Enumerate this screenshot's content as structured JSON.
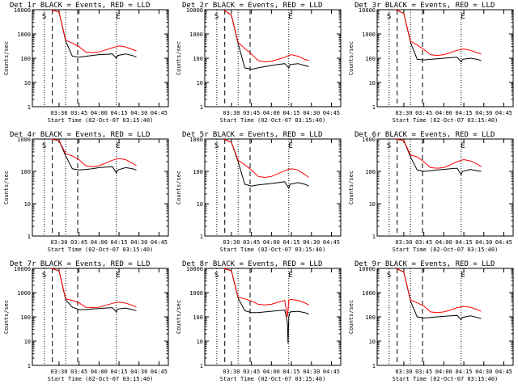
{
  "figure": {
    "xlabel": "Start Time (02-Oct-07 03:15:40)",
    "ylabel": "Counts/sec",
    "xticks": [
      "03:30",
      "03:45",
      "04:00",
      "04:15",
      "04:30",
      "04:45"
    ],
    "yticks": [
      "1",
      "10",
      "100",
      "1000",
      "10000"
    ],
    "colors": {
      "events": "#000000",
      "lld": "#ff0000"
    }
  },
  "chart_data": [
    {
      "type": "line",
      "title": "Det 1r BLACK = Events, RED = LLD",
      "xlabel": "Start Time (02-Oct-07 03:15:40)",
      "ylabel": "Counts/sec",
      "xlim_min": [
        15.67,
        90
      ],
      "ylim": [
        1,
        10000
      ],
      "yscale": "log",
      "markers": {
        "S": 19,
        "E": 74
      },
      "vlines_dotted": [
        19,
        35,
        73
      ],
      "vlines_dashed": [
        25,
        44
      ],
      "series": [
        {
          "name": "Events",
          "color": "#000000",
          "x": [
            24,
            30,
            35,
            40,
            45,
            50,
            55,
            60,
            65,
            70,
            73,
            74,
            80,
            85,
            88
          ],
          "y": [
            10000,
            8000,
            500,
            120,
            110,
            120,
            130,
            140,
            145,
            150,
            100,
            130,
            150,
            130,
            110
          ]
        },
        {
          "name": "LLD",
          "color": "#ff0000",
          "x": [
            24,
            30,
            35,
            40,
            45,
            50,
            55,
            60,
            65,
            70,
            73,
            75,
            80,
            85,
            88
          ],
          "y": [
            10000,
            8000,
            550,
            420,
            300,
            180,
            170,
            180,
            220,
            270,
            300,
            320,
            290,
            230,
            200
          ]
        }
      ]
    },
    {
      "type": "line",
      "title": "Det 2r BLACK = Events, RED = LLD",
      "xlabel": "Start Time (02-Oct-07 03:15:40)",
      "ylabel": "Counts/sec",
      "xlim_min": [
        15.67,
        90
      ],
      "ylim": [
        1,
        10000
      ],
      "yscale": "log",
      "markers": {
        "S": 19,
        "E": 74
      },
      "vlines_dotted": [
        19,
        35,
        73
      ],
      "vlines_dashed": [
        25,
        44
      ],
      "series": [
        {
          "name": "Events",
          "color": "#000000",
          "x": [
            24,
            30,
            35,
            40,
            45,
            50,
            55,
            60,
            65,
            70,
            73,
            74,
            80,
            85,
            88
          ],
          "y": [
            10000,
            6000,
            400,
            40,
            35,
            40,
            45,
            50,
            55,
            60,
            40,
            55,
            60,
            50,
            45
          ]
        },
        {
          "name": "LLD",
          "color": "#ff0000",
          "x": [
            24,
            30,
            35,
            40,
            45,
            50,
            55,
            60,
            65,
            70,
            73,
            75,
            80,
            85,
            88
          ],
          "y": [
            10000,
            6000,
            450,
            250,
            150,
            80,
            70,
            75,
            90,
            110,
            130,
            140,
            120,
            90,
            80
          ]
        }
      ]
    },
    {
      "type": "line",
      "title": "Det 3r BLACK = Events, RED = LLD",
      "xlabel": "Start Time (02-Oct-07 03:15:40)",
      "ylabel": "Counts/sec",
      "xlim_min": [
        15.67,
        90
      ],
      "ylim": [
        1,
        10000
      ],
      "yscale": "log",
      "markers": {
        "S": 19,
        "E": 74
      },
      "vlines_dotted": [
        19,
        35,
        73
      ],
      "vlines_dashed": [
        25,
        44
      ],
      "series": [
        {
          "name": "Events",
          "color": "#000000",
          "x": [
            24,
            30,
            35,
            40,
            45,
            50,
            55,
            60,
            65,
            70,
            73,
            74,
            80,
            85,
            88
          ],
          "y": [
            10000,
            7000,
            450,
            90,
            85,
            90,
            95,
            100,
            105,
            110,
            70,
            90,
            100,
            90,
            80
          ]
        },
        {
          "name": "LLD",
          "color": "#ff0000",
          "x": [
            24,
            30,
            35,
            40,
            45,
            50,
            55,
            60,
            65,
            70,
            73,
            75,
            80,
            85,
            88
          ],
          "y": [
            10000,
            7000,
            500,
            350,
            230,
            140,
            130,
            140,
            170,
            210,
            230,
            240,
            210,
            170,
            150
          ]
        }
      ]
    },
    {
      "type": "line",
      "title": "Det 4r BLACK = Events, RED = LLD",
      "xlabel": "Start Time (02-Oct-07 03:15:40)",
      "ylabel": "Counts/sec",
      "xlim_min": [
        15.67,
        90
      ],
      "ylim": [
        1,
        1000
      ],
      "yscale": "log",
      "markers": {
        "S": 19,
        "E": 74
      },
      "vlines_dotted": [
        19,
        35,
        73
      ],
      "vlines_dashed": [
        25,
        44
      ],
      "series": [
        {
          "name": "Events",
          "color": "#000000",
          "x": [
            24,
            30,
            35,
            40,
            45,
            50,
            55,
            60,
            65,
            70,
            73,
            74,
            80,
            85,
            88
          ],
          "y": [
            1000,
            900,
            300,
            120,
            110,
            115,
            120,
            130,
            135,
            140,
            90,
            110,
            130,
            120,
            110
          ]
        },
        {
          "name": "LLD",
          "color": "#ff0000",
          "x": [
            24,
            30,
            35,
            40,
            45,
            50,
            55,
            60,
            65,
            70,
            73,
            75,
            80,
            85,
            88
          ],
          "y": [
            1000,
            900,
            350,
            300,
            230,
            150,
            140,
            150,
            180,
            220,
            240,
            250,
            230,
            180,
            150
          ]
        }
      ]
    },
    {
      "type": "line",
      "title": "Det 5r BLACK = Events, RED = LLD",
      "xlabel": "Start Time (02-Oct-07 03:15:40)",
      "ylabel": "Counts/sec",
      "xlim_min": [
        15.67,
        90
      ],
      "ylim": [
        1,
        1000
      ],
      "yscale": "log",
      "markers": {
        "S": 19,
        "E": 74
      },
      "vlines_dotted": [
        19,
        35,
        73
      ],
      "vlines_dashed": [
        25,
        44
      ],
      "series": [
        {
          "name": "Events",
          "color": "#000000",
          "x": [
            24,
            30,
            35,
            40,
            45,
            50,
            55,
            60,
            65,
            70,
            73,
            74,
            80,
            85,
            88
          ],
          "y": [
            1000,
            800,
            200,
            40,
            35,
            38,
            40,
            42,
            45,
            48,
            30,
            40,
            45,
            40,
            35
          ]
        },
        {
          "name": "LLD",
          "color": "#ff0000",
          "x": [
            24,
            30,
            35,
            40,
            45,
            50,
            55,
            60,
            65,
            70,
            73,
            75,
            80,
            85,
            88
          ],
          "y": [
            1000,
            800,
            220,
            160,
            110,
            70,
            65,
            70,
            85,
            105,
            115,
            120,
            110,
            80,
            65
          ]
        }
      ]
    },
    {
      "type": "line",
      "title": "Det 6r BLACK = Events, RED = LLD",
      "xlabel": "Start Time (02-Oct-07 03:15:40)",
      "ylabel": "Counts/sec",
      "xlim_min": [
        15.67,
        90
      ],
      "ylim": [
        1,
        1000
      ],
      "yscale": "log",
      "markers": {
        "S": 19,
        "E": 74
      },
      "vlines_dotted": [
        19,
        35,
        73
      ],
      "vlines_dashed": [
        25,
        44
      ],
      "series": [
        {
          "name": "Events",
          "color": "#000000",
          "x": [
            24,
            30,
            35,
            40,
            45,
            50,
            55,
            60,
            65,
            70,
            73,
            74,
            80,
            85,
            88
          ],
          "y": [
            1000,
            900,
            280,
            110,
            100,
            105,
            110,
            115,
            120,
            125,
            80,
            100,
            115,
            105,
            100
          ]
        },
        {
          "name": "LLD",
          "color": "#ff0000",
          "x": [
            24,
            30,
            35,
            40,
            45,
            50,
            55,
            60,
            65,
            70,
            73,
            75,
            80,
            85,
            88
          ],
          "y": [
            1000,
            900,
            320,
            280,
            200,
            130,
            125,
            130,
            160,
            200,
            220,
            230,
            210,
            170,
            140
          ]
        }
      ]
    },
    {
      "type": "line",
      "title": "Det 7r BLACK = Events, RED = LLD",
      "xlabel": "Start Time (02-Oct-07 03:15:40)",
      "ylabel": "Counts/sec",
      "xlim_min": [
        15.67,
        90
      ],
      "ylim": [
        1,
        10000
      ],
      "yscale": "log",
      "markers": {
        "S": 19,
        "E": 74
      },
      "vlines_dotted": [
        19,
        35,
        73
      ],
      "vlines_dashed": [
        25,
        44
      ],
      "series": [
        {
          "name": "Events",
          "color": "#000000",
          "x": [
            24,
            30,
            35,
            40,
            45,
            50,
            55,
            60,
            65,
            70,
            73,
            74,
            80,
            85,
            88
          ],
          "y": [
            10000,
            8000,
            500,
            250,
            200,
            200,
            210,
            220,
            230,
            240,
            160,
            210,
            230,
            200,
            180
          ]
        },
        {
          "name": "LLD",
          "color": "#ff0000",
          "x": [
            24,
            30,
            35,
            40,
            45,
            50,
            55,
            60,
            65,
            70,
            73,
            75,
            80,
            85,
            88
          ],
          "y": [
            10000,
            8000,
            550,
            480,
            380,
            250,
            240,
            250,
            300,
            360,
            390,
            400,
            370,
            300,
            250
          ]
        }
      ]
    },
    {
      "type": "line",
      "title": "Det 8r BLACK = Events, RED = LLD",
      "xlabel": "Start Time (02-Oct-07 03:15:40)",
      "ylabel": "Counts/sec",
      "xlim_min": [
        15.67,
        90
      ],
      "ylim": [
        1,
        10000
      ],
      "yscale": "log",
      "markers": {
        "S": 19,
        "E": 74
      },
      "vlines_dotted": [
        19,
        35,
        73
      ],
      "vlines_dashed": [
        25,
        44
      ],
      "series": [
        {
          "name": "Events",
          "color": "#000000",
          "x": [
            24,
            30,
            35,
            40,
            45,
            50,
            55,
            60,
            65,
            70,
            72,
            72.5,
            73,
            74,
            80,
            85,
            88
          ],
          "y": [
            10000,
            8000,
            600,
            180,
            150,
            150,
            160,
            170,
            180,
            190,
            60,
            8,
            100,
            160,
            170,
            150,
            130
          ]
        },
        {
          "name": "LLD",
          "color": "#ff0000",
          "x": [
            24,
            30,
            35,
            40,
            45,
            50,
            55,
            60,
            65,
            70,
            72,
            73,
            75,
            80,
            85,
            88
          ],
          "y": [
            10000,
            8000,
            650,
            550,
            450,
            330,
            310,
            330,
            400,
            480,
            100,
            500,
            520,
            480,
            380,
            310
          ]
        }
      ]
    },
    {
      "type": "line",
      "title": "Det 9r BLACK = Events, RED = LLD",
      "xlabel": "Start Time (02-Oct-07 03:15:40)",
      "ylabel": "Counts/sec",
      "xlim_min": [
        15.67,
        90
      ],
      "ylim": [
        1,
        10000
      ],
      "yscale": "log",
      "markers": {
        "S": 19,
        "E": 74
      },
      "vlines_dotted": [
        19,
        35,
        73
      ],
      "vlines_dashed": [
        25,
        44
      ],
      "series": [
        {
          "name": "Events",
          "color": "#000000",
          "x": [
            24,
            30,
            35,
            40,
            45,
            50,
            55,
            60,
            65,
            70,
            73,
            74,
            80,
            85,
            88
          ],
          "y": [
            10000,
            7000,
            450,
            100,
            90,
            95,
            100,
            105,
            110,
            115,
            75,
            95,
            110,
            95,
            85
          ]
        },
        {
          "name": "LLD",
          "color": "#ff0000",
          "x": [
            24,
            30,
            35,
            40,
            45,
            50,
            55,
            60,
            65,
            70,
            73,
            75,
            80,
            85,
            88
          ],
          "y": [
            10000,
            7000,
            500,
            380,
            280,
            160,
            150,
            160,
            190,
            240,
            260,
            270,
            250,
            200,
            170
          ]
        }
      ]
    }
  ]
}
